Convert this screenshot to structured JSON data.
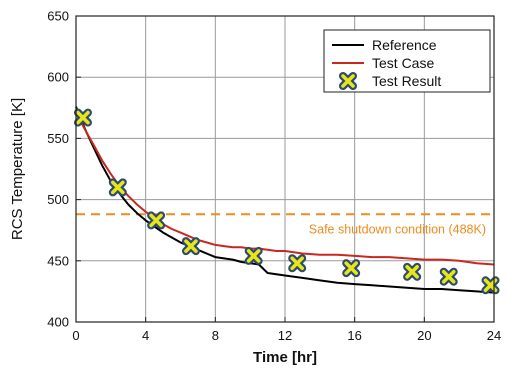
{
  "chart_data": {
    "type": "line",
    "title": "",
    "xlabel": "Time [hr]",
    "ylabel": "RCS Temperature [K]",
    "xlim": [
      0,
      24
    ],
    "ylim": [
      400,
      650
    ],
    "xticks": [
      0,
      4,
      8,
      12,
      16,
      20,
      24
    ],
    "yticks": [
      400,
      450,
      500,
      550,
      600,
      650
    ],
    "grid": true,
    "legend_position": "top-right",
    "series": [
      {
        "name": "Reference",
        "color": "#000000",
        "style": "line",
        "x": [
          0,
          0.3,
          0.6,
          1.0,
          1.5,
          2.0,
          2.5,
          3.0,
          3.5,
          4.0,
          4.5,
          5.0,
          5.5,
          6.0,
          6.5,
          7.0,
          7.5,
          8.0,
          8.5,
          9.0,
          9.5,
          10.0,
          10.5,
          11.0,
          11.5,
          12.0,
          13.0,
          14.0,
          15.0,
          16.0,
          17.0,
          18.0,
          19.0,
          20.0,
          21.0,
          22.0,
          23.0,
          24.0
        ],
        "y": [
          576,
          565,
          555,
          543,
          528,
          515,
          505,
          496,
          489,
          483,
          478,
          473,
          469,
          465,
          462,
          459,
          456,
          453,
          452,
          451,
          449,
          448,
          447,
          440,
          439,
          438,
          436,
          434,
          432,
          431,
          430,
          429,
          428,
          427,
          427,
          426,
          425,
          424
        ]
      },
      {
        "name": "Test Case",
        "color": "#c8281e",
        "style": "line",
        "x": [
          0,
          0.3,
          0.6,
          1.0,
          1.5,
          2.0,
          2.5,
          3.0,
          3.5,
          4.0,
          4.5,
          5.0,
          5.5,
          6.0,
          6.5,
          7.0,
          7.5,
          8.0,
          8.5,
          9.0,
          9.5,
          10.0,
          10.5,
          11.0,
          11.5,
          12.0,
          13.0,
          14.0,
          15.0,
          16.0,
          17.0,
          18.0,
          19.0,
          20.0,
          21.0,
          22.0,
          23.0,
          24.0
        ],
        "y": [
          571,
          563,
          555,
          545,
          532,
          521,
          511,
          503,
          496,
          490,
          485,
          480,
          476,
          473,
          470,
          467,
          465,
          463,
          462,
          461,
          461,
          460,
          460,
          459,
          458,
          458,
          456,
          455,
          455,
          454,
          453,
          453,
          452,
          451,
          451,
          450,
          448,
          447
        ]
      },
      {
        "name": "Test Result",
        "color": "#e6e619",
        "edge_color": "#2e4a6e",
        "style": "marker",
        "x": [
          0.4,
          2.4,
          4.6,
          6.6,
          10.2,
          12.7,
          15.8,
          19.3,
          21.4,
          23.8
        ],
        "y": [
          567,
          510,
          483,
          462,
          454,
          448,
          444,
          441,
          437,
          430
        ]
      }
    ],
    "reference_line": {
      "y": 488,
      "color": "#ee8c1e",
      "style": "dashed",
      "label": "Safe shutdown condition (488K)"
    }
  }
}
